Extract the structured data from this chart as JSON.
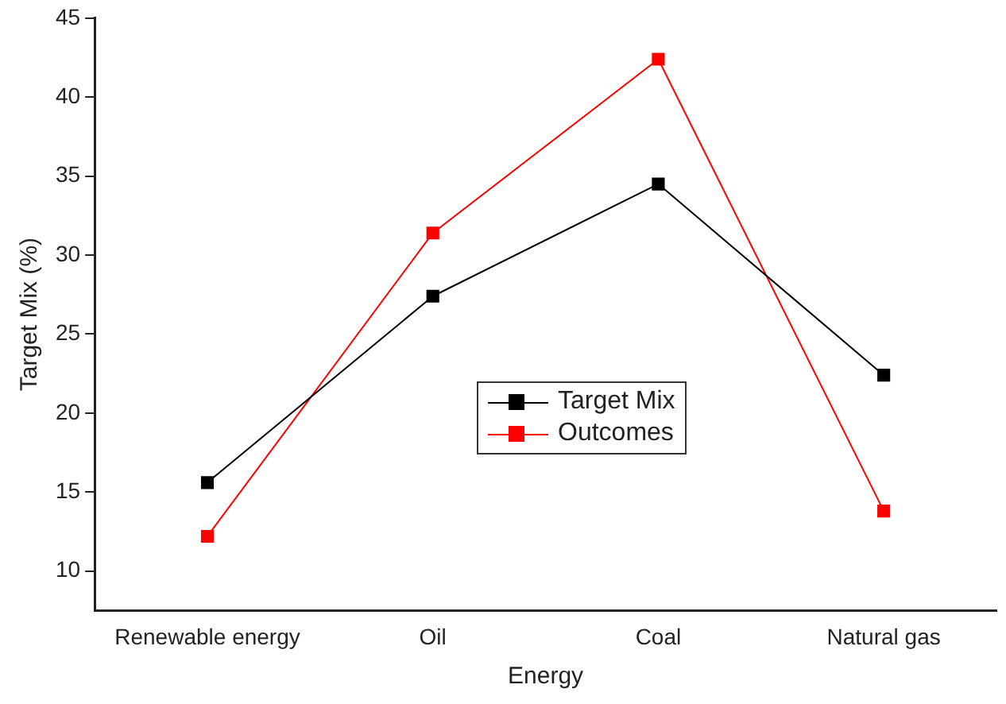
{
  "chart_data": {
    "type": "line",
    "xlabel": "Energy",
    "ylabel": "Target Mix (%)",
    "categories": [
      "Renewable energy",
      "Oil",
      "Coal",
      "Natural gas"
    ],
    "series": [
      {
        "name": "Target Mix",
        "color": "#000000",
        "values": [
          15.6,
          27.4,
          34.5,
          22.4
        ]
      },
      {
        "name": "Outcomes",
        "color": "#ff0000",
        "values": [
          12.2,
          31.4,
          42.4,
          13.8
        ]
      }
    ],
    "ylim": [
      7.5,
      45
    ],
    "yticks": [
      10,
      15,
      20,
      25,
      30,
      35,
      40,
      45
    ],
    "grid": false,
    "legend": "center",
    "marker": "square",
    "line_style": "solid"
  }
}
